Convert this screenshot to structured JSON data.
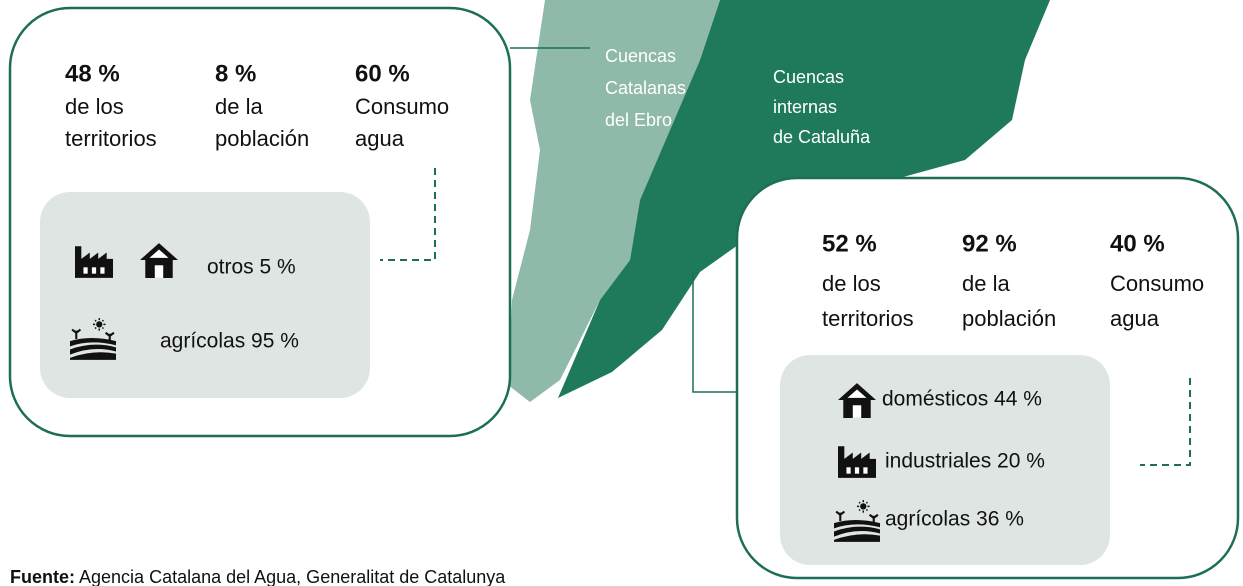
{
  "regions": [
    {
      "lines": [
        "Cuencas",
        "Catalanas",
        "del Ebro"
      ]
    },
    {
      "lines": [
        "Cuencas",
        "internas",
        "de Cataluña"
      ]
    }
  ],
  "panels": [
    {
      "stats": [
        {
          "value": "48 %",
          "lines": [
            "de los",
            "territorios"
          ]
        },
        {
          "value": "8 %",
          "lines": [
            "de la",
            "población"
          ]
        },
        {
          "value": "60 %",
          "lines": [
            "Consumo",
            "agua"
          ]
        }
      ],
      "uses": [
        {
          "label": "otros 5 %"
        },
        {
          "label": "agrícolas 95 %"
        }
      ]
    },
    {
      "stats": [
        {
          "value": "52 %",
          "lines": [
            "de los",
            "territorios"
          ]
        },
        {
          "value": "92 %",
          "lines": [
            "de la",
            "población"
          ]
        },
        {
          "value": "40 %",
          "lines": [
            "Consumo",
            "agua"
          ]
        }
      ],
      "uses": [
        {
          "label": "domésticos 44 %"
        },
        {
          "label": "industriales 20 %"
        },
        {
          "label": "agrícolas 36 %"
        }
      ]
    }
  ],
  "source": {
    "label": "Fuente:",
    "text": "Agencia Catalana del Agua, Generalitat de Catalunya"
  }
}
